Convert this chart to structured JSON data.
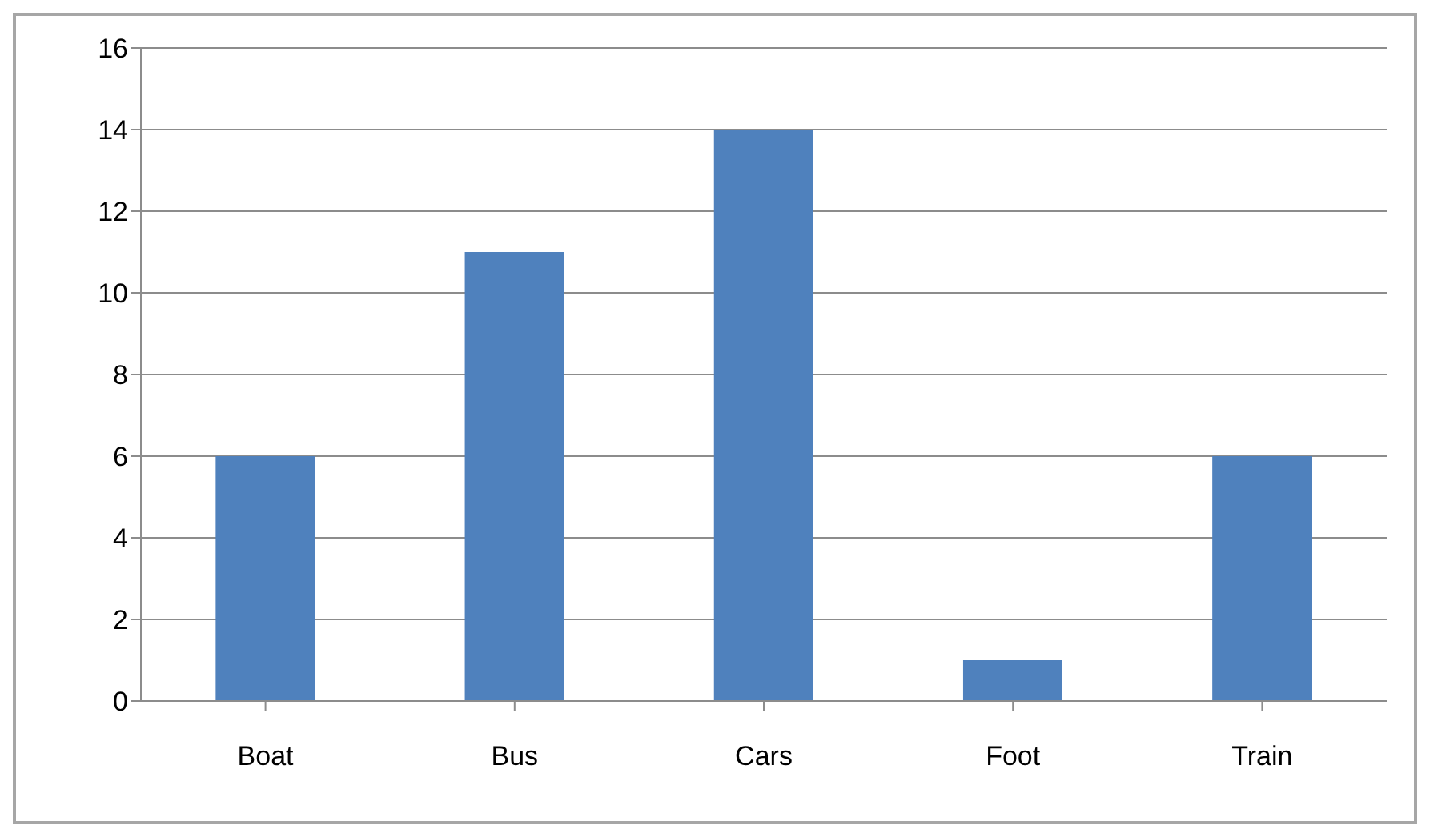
{
  "chart_data": {
    "type": "bar",
    "categories": [
      "Boat",
      "Bus",
      "Cars",
      "Foot",
      "Train"
    ],
    "values": [
      6,
      11,
      14,
      1,
      6
    ],
    "color": "#4f81bd",
    "ylim": [
      0,
      16
    ],
    "yticks": [
      0,
      2,
      4,
      6,
      8,
      10,
      12,
      14,
      16
    ],
    "grid": "y",
    "legend": false
  }
}
